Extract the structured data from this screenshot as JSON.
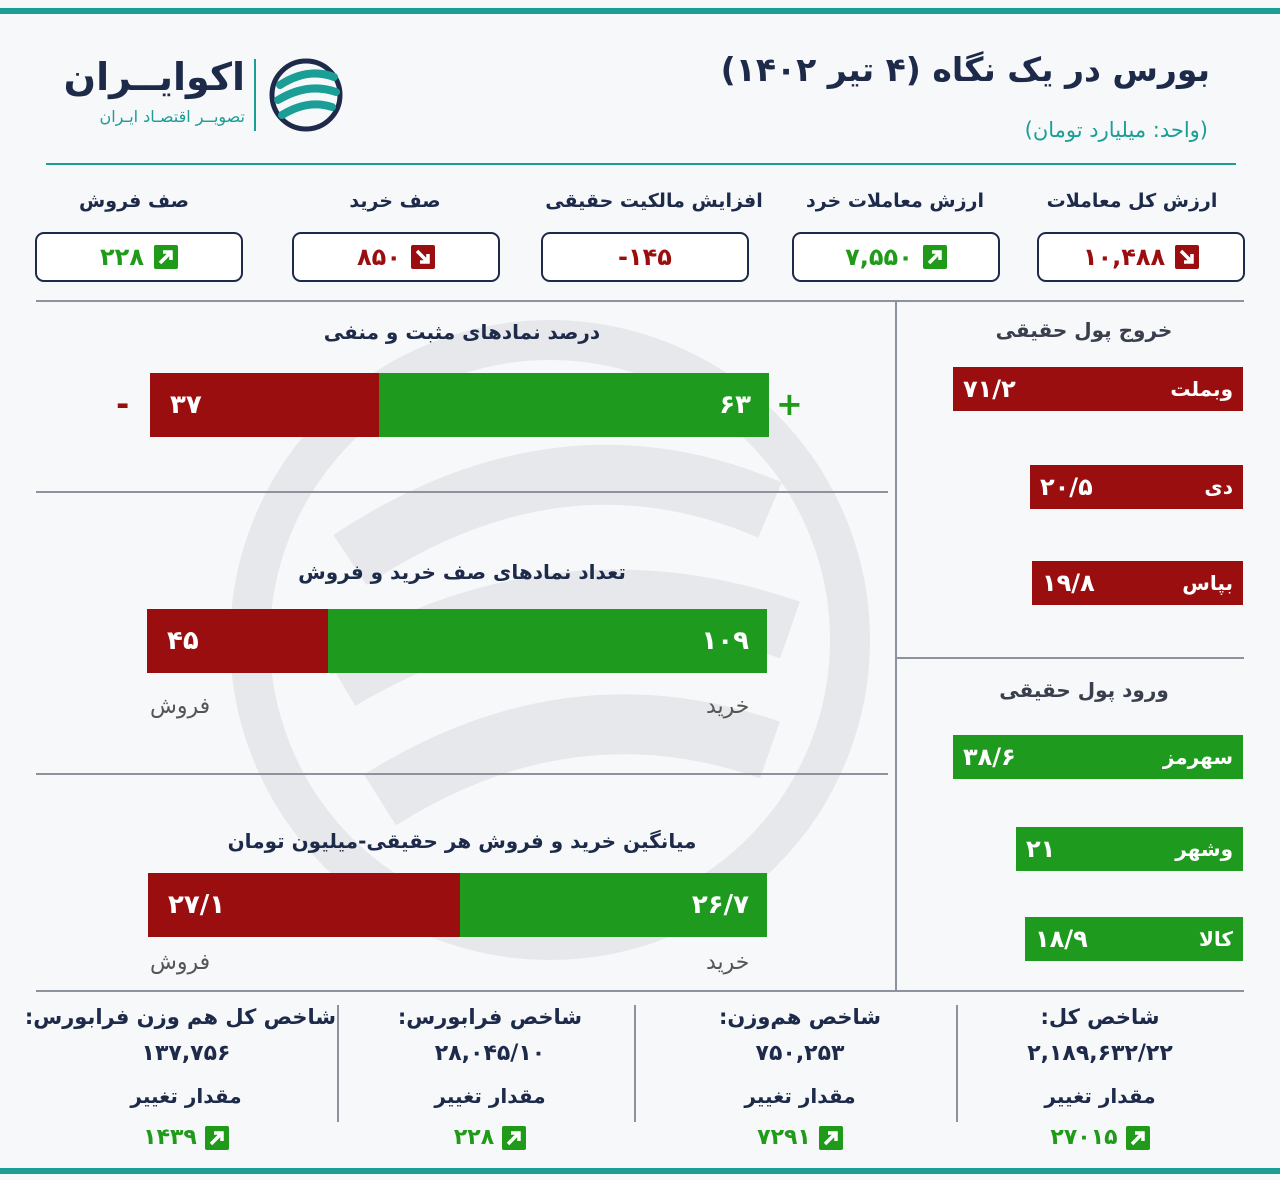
{
  "header": {
    "title": "بورس در یک نگاه (۴ تیر ۱۴۰۲)",
    "unit": "(واحد: میلیارد تومان)"
  },
  "logo": {
    "name": "اکوایــران",
    "tagline": "تصویــر اقتصـاد ایـران"
  },
  "colors": {
    "accent": "#1a9e96",
    "navy": "#1d2a4a",
    "red": "#9b0e10",
    "green": "#1e9a1e"
  },
  "kpis": [
    {
      "label": "ارزش کل معاملات",
      "value": "۱۰,۴۸۸",
      "trend": "down",
      "color": "red"
    },
    {
      "label": "ارزش معاملات خرد",
      "value": "۷,۵۵۰",
      "trend": "up",
      "color": "green"
    },
    {
      "label": "افزایش مالکیت حقیقی",
      "value": "-۱۴۵",
      "trend": "none",
      "color": "red"
    },
    {
      "label": "صف خرید",
      "value": "۸۵۰",
      "trend": "down",
      "color": "red"
    },
    {
      "label": "صف فروش",
      "value": "۲۲۸",
      "trend": "up",
      "color": "green"
    }
  ],
  "sections": {
    "positive_negative": {
      "title": "درصد نمادهای مثبت و منفی",
      "negative": 37,
      "positive": 63,
      "negative_label": "۳۷",
      "positive_label": "۶۳",
      "minus_sign": "-",
      "plus_sign": "+"
    },
    "queues": {
      "title": "تعداد نمادهای صف خرید و فروش",
      "sell": 45,
      "buy": 109,
      "sell_label": "۴۵",
      "buy_label": "۱۰۹",
      "sell_caption": "فروش",
      "buy_caption": "خرید"
    },
    "avg_trade": {
      "title": "میانگین خرید و فروش هر حقیقی-میلیون تومان",
      "sell": 27.1,
      "buy": 26.7,
      "sell_label": "۲۷/۱",
      "buy_label": "۲۶/۷",
      "sell_caption": "فروش",
      "buy_caption": "خرید"
    }
  },
  "money_out": {
    "title": "خروج پول حقیقی",
    "items": [
      {
        "name": "وبملت",
        "value": 71.2,
        "label": "۷۱/۲"
      },
      {
        "name": "دی",
        "value": 20.5,
        "label": "۲۰/۵"
      },
      {
        "name": "بپاس",
        "value": 19.8,
        "label": "۱۹/۸"
      }
    ]
  },
  "money_in": {
    "title": "ورود پول حقیقی",
    "items": [
      {
        "name": "سهرمز",
        "value": 38.6,
        "label": "۳۸/۶"
      },
      {
        "name": "وشهر",
        "value": 21,
        "label": "۲۱"
      },
      {
        "name": "کالا",
        "value": 18.9,
        "label": "۱۸/۹"
      }
    ]
  },
  "indices": [
    {
      "name": "شاخص کل:",
      "value": "۲,۱۸۹,۶۳۲/۲۲",
      "change_label": "مقدار تغییر",
      "change": "۲۷۰۱۵"
    },
    {
      "name": "شاخص هم‌وزن:",
      "value": "۷۵۰,۲۵۳",
      "change_label": "مقدار تغییر",
      "change": "۷۲۹۱"
    },
    {
      "name": "شاخص فرابورس:",
      "value": "۲۸,۰۴۵/۱۰",
      "change_label": "مقدار تغییر",
      "change": "۲۲۸"
    },
    {
      "name": "شاخص کل هم وزن فرابورس:",
      "value": "۱۳۷,۷۵۶",
      "change_label": "مقدار تغییر",
      "change": "۱۴۳۹"
    }
  ]
}
